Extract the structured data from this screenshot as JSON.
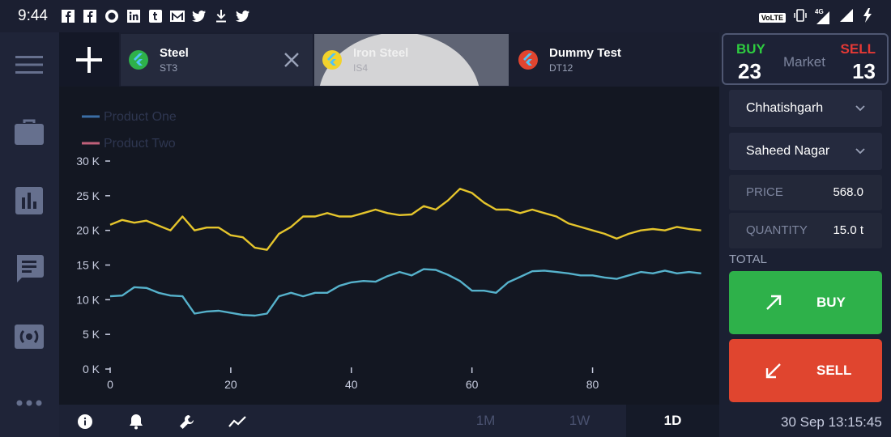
{
  "status_bar": {
    "time": "9:44",
    "left_icons": [
      "facebook-icon",
      "facebook-icon",
      "circle-app-icon",
      "linkedin-icon",
      "tumblr-icon",
      "gmail-icon",
      "twitter-icon",
      "download-icon",
      "twitter-icon"
    ],
    "volte": "VoLTE",
    "network": "4G"
  },
  "left_nav": [
    "menu-icon",
    "briefcase-icon",
    "bar-chart-icon",
    "chat-icon",
    "broadcast-icon",
    "more-icon"
  ],
  "tabs": [
    {
      "title": "Steel",
      "subtitle": "ST3",
      "closable": true
    },
    {
      "title": "Iron Steel",
      "subtitle": "IS4",
      "pressed": true
    },
    {
      "title": "Dummy Test",
      "subtitle": "DT12"
    }
  ],
  "chart_data": {
    "type": "line",
    "legend": [
      {
        "name": "Product One",
        "color": "#3b6ea5"
      },
      {
        "name": "Product Two",
        "color": "#c0607a"
      }
    ],
    "legend_placement": "top-left",
    "grid": false,
    "y_ticks": [
      "0 K",
      "5 K",
      "10 K",
      "15 K",
      "20 K",
      "25 K",
      "30 K"
    ],
    "x_ticks": [
      "0",
      "20",
      "40",
      "60",
      "80"
    ],
    "xlim": [
      0,
      99
    ],
    "ylim": [
      0,
      30000
    ],
    "series": [
      {
        "color": "#e5c52c",
        "x": [
          0,
          2,
          4,
          6,
          8,
          10,
          12,
          14,
          16,
          18,
          20,
          22,
          24,
          26,
          28,
          30,
          32,
          34,
          36,
          38,
          40,
          42,
          44,
          46,
          48,
          50,
          52,
          54,
          56,
          58,
          60,
          62,
          64,
          66,
          68,
          70,
          72,
          74,
          76,
          78,
          80,
          82,
          84,
          86,
          88,
          90,
          92,
          94,
          96,
          98
        ],
        "y": [
          20800,
          21500,
          21100,
          21400,
          20700,
          20000,
          22000,
          20000,
          20400,
          20400,
          19300,
          19000,
          17500,
          17200,
          19500,
          20500,
          22000,
          22000,
          22500,
          22000,
          22000,
          22500,
          23000,
          22500,
          22200,
          22300,
          23500,
          23000,
          24300,
          26000,
          25400,
          24000,
          23000,
          23000,
          22500,
          23000,
          22500,
          22000,
          21000,
          20500,
          20000,
          19500,
          18800,
          19500,
          20000,
          20200,
          20000,
          20500,
          20200,
          20000
        ]
      },
      {
        "color": "#56b2cc",
        "x": [
          0,
          2,
          4,
          6,
          8,
          10,
          12,
          14,
          16,
          18,
          20,
          22,
          24,
          26,
          28,
          30,
          32,
          34,
          36,
          38,
          40,
          42,
          44,
          46,
          48,
          50,
          52,
          54,
          56,
          58,
          60,
          62,
          64,
          66,
          68,
          70,
          72,
          74,
          76,
          78,
          80,
          82,
          84,
          86,
          88,
          90,
          92,
          94,
          96,
          98
        ],
        "y": [
          10500,
          10600,
          11800,
          11700,
          11000,
          10600,
          10500,
          8000,
          8300,
          8400,
          8100,
          7800,
          7700,
          8000,
          10500,
          11000,
          10500,
          11000,
          11000,
          12000,
          12500,
          12700,
          12600,
          13400,
          14000,
          13500,
          14400,
          14300,
          13600,
          12700,
          11300,
          11300,
          11000,
          12500,
          13300,
          14100,
          14200,
          14000,
          13800,
          13500,
          13500,
          13200,
          13000,
          13500,
          14000,
          13800,
          14200,
          13800,
          14000,
          13800
        ]
      }
    ]
  },
  "bottom_bar": {
    "icons": [
      "info-icon",
      "bell-icon",
      "wrench-icon",
      "trend-line-icon"
    ],
    "ranges": [
      "1M",
      "1W",
      "1D"
    ],
    "active_range": "1D"
  },
  "market": {
    "buy_label": "BUY",
    "buy_value": "23",
    "label": "Market",
    "sell_label": "SELL",
    "sell_value": "13"
  },
  "order_form": {
    "state": "Chhatishgarh",
    "area": "Saheed Nagar",
    "price_label": "PRICE",
    "price_value": "568.0",
    "quantity_label": "QUANTITY",
    "quantity_value": "15.0 t",
    "total_label": "TOTAL",
    "buy_button": "BUY",
    "sell_button": "SELL"
  },
  "datetime": "30 Sep 13:15:45",
  "colors": {
    "buy_green": "#2eb14a",
    "sell_red": "#e0452f",
    "accent_yellow": "#e5c52c",
    "accent_cyan": "#56b2cc"
  }
}
